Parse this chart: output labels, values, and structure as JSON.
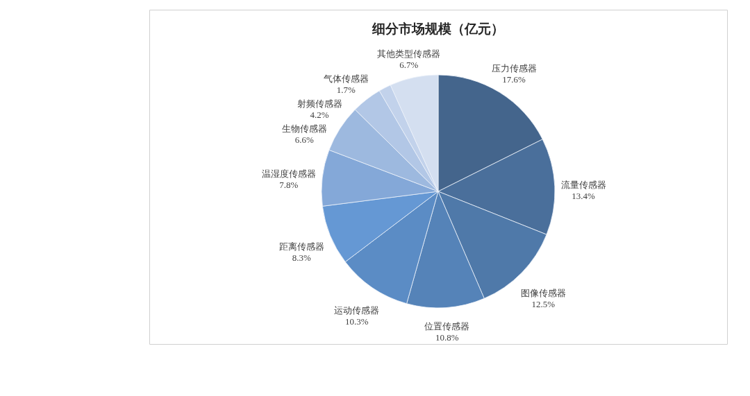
{
  "chart_data": {
    "type": "pie",
    "title": "细分市场规模（亿元）",
    "categories": [
      "压力传感器",
      "流量传感器",
      "图像传感器",
      "位置传感器",
      "运动传感器",
      "距离传感器",
      "温湿度传感器",
      "生物传感器",
      "射频传感器",
      "气体传感器",
      "其他类型传感器"
    ],
    "values": [
      17.6,
      13.4,
      12.5,
      10.8,
      10.3,
      8.3,
      7.8,
      6.6,
      4.2,
      1.7,
      6.7
    ],
    "colors": [
      "#44658c",
      "#4a6f9b",
      "#4f79a9",
      "#5583b8",
      "#5b8cc5",
      "#6598d4",
      "#84a8d8",
      "#9db9df",
      "#b2c7e6",
      "#c2d2eb",
      "#d4dff0"
    ],
    "value_labels": [
      "17.6%",
      "13.4%",
      "12.5%",
      "10.8%",
      "10.3%",
      "8.3%",
      "7.8%",
      "6.6%",
      "4.2%",
      "1.7%",
      "6.7%"
    ]
  }
}
